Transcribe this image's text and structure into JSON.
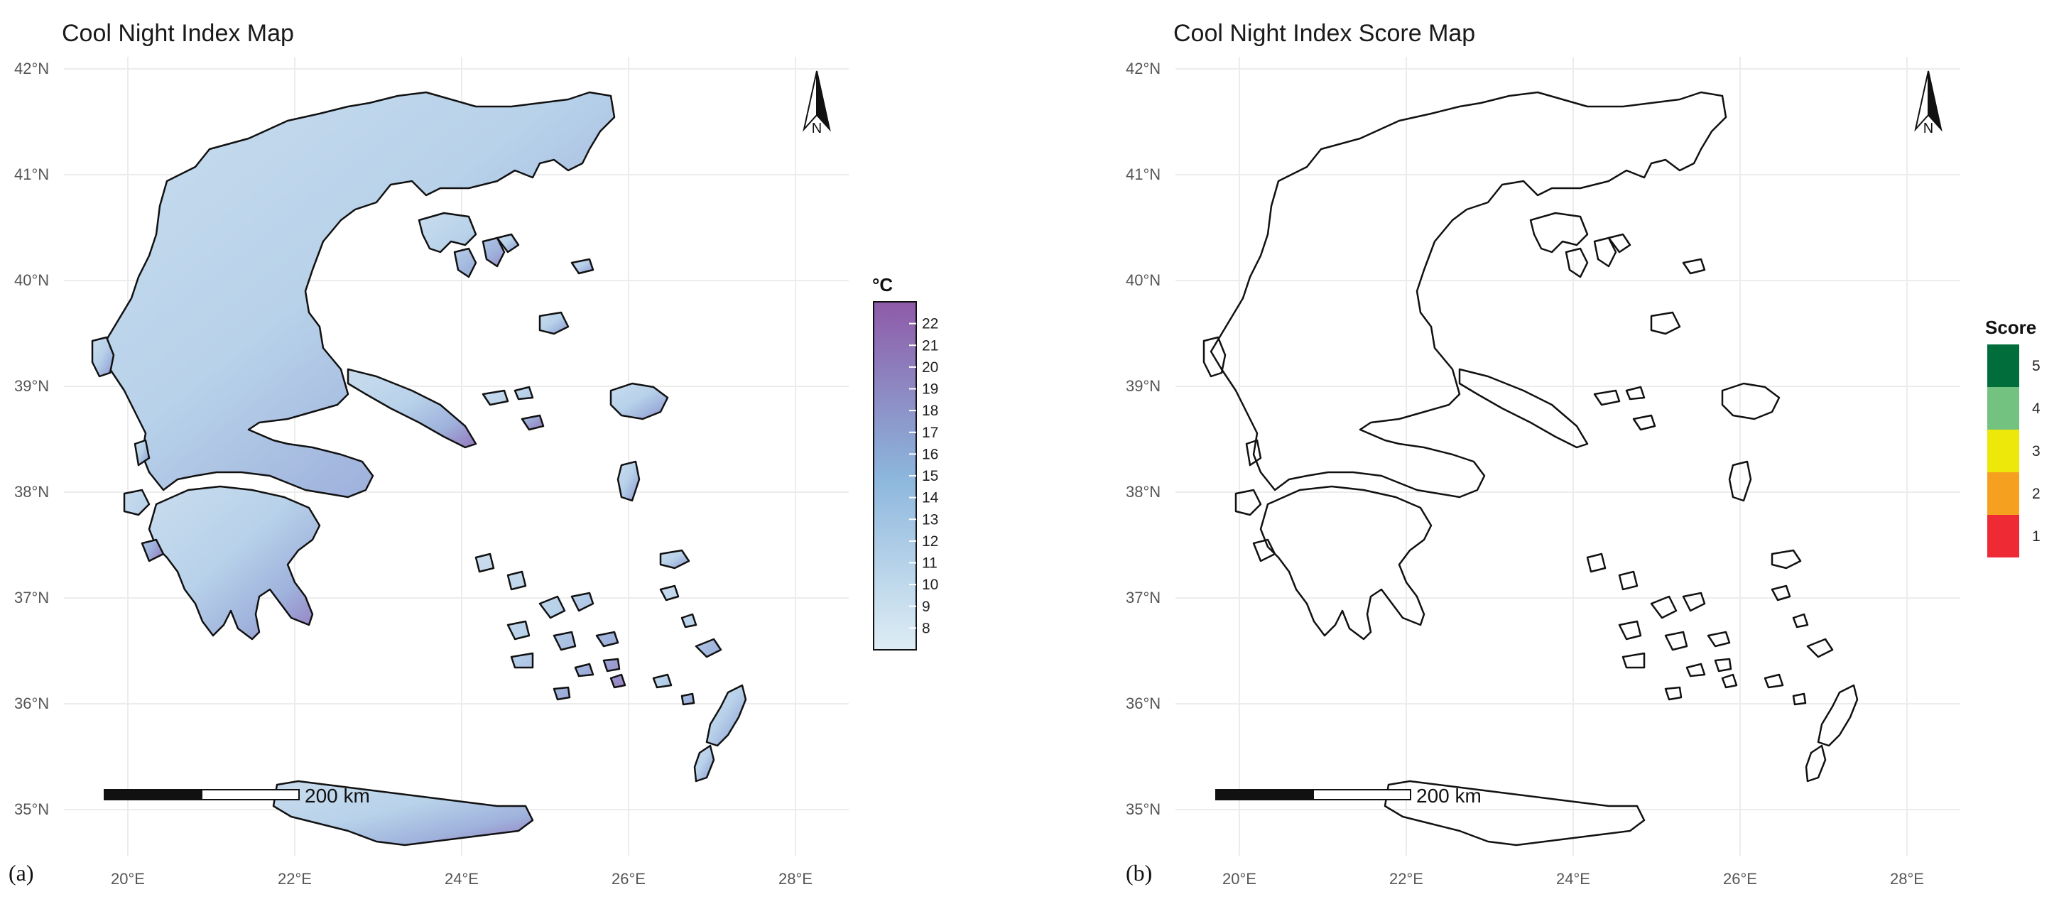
{
  "figure": {
    "panels": [
      {
        "id": "a",
        "letter": "(a)",
        "title": "Cool Night Index Map",
        "type": "continuous",
        "legend": {
          "title": "°C",
          "min": 7,
          "max": 23,
          "ticks": [
            "22",
            "21",
            "20",
            "19",
            "18",
            "17",
            "16",
            "15",
            "14",
            "13",
            "12",
            "11",
            "10",
            "9",
            "8"
          ],
          "color_low": "#deedf5",
          "color_mid": "#8cb6dc",
          "color_high": "#8e5aa8"
        }
      },
      {
        "id": "b",
        "letter": "(b)",
        "title": "Cool Night Index Score Map",
        "type": "categorical",
        "legend": {
          "title": "Score",
          "classes": [
            {
              "label": "5",
              "color": "#006d3b"
            },
            {
              "label": "4",
              "color": "#74c27f"
            },
            {
              "label": "3",
              "color": "#eee70a"
            },
            {
              "label": "2",
              "color": "#f5a11f"
            },
            {
              "label": "1",
              "color": "#ee2b35"
            }
          ]
        }
      }
    ],
    "axes": {
      "lat_ticks": [
        "42°N",
        "41°N",
        "40°N",
        "39°N",
        "38°N",
        "37°N",
        "36°N",
        "35°N"
      ],
      "lon_ticks": [
        "20°E",
        "22°E",
        "24°E",
        "26°E",
        "28°E"
      ]
    },
    "scale_bar": {
      "label": "200 km"
    },
    "north_arrow": {
      "label": "N"
    }
  }
}
